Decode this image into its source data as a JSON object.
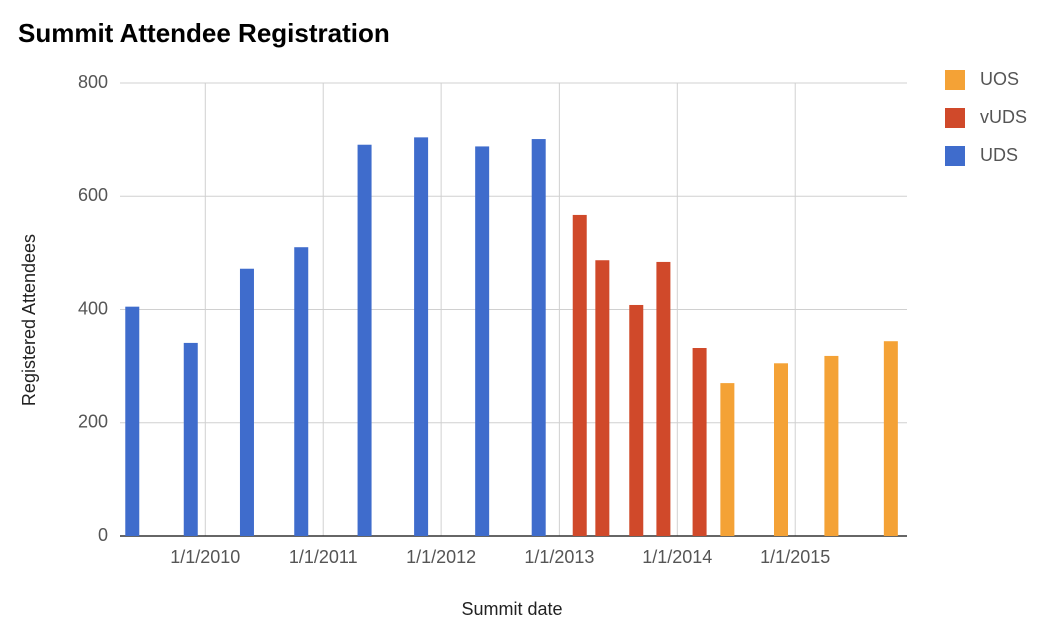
{
  "chart_data": {
    "type": "bar",
    "title": "Summit Attendee Registration",
    "x_label": "Summit date",
    "y_label": "Registered Attendees",
    "xlim": [
      "2009-04-12",
      "2015-12-13"
    ],
    "xticks": [
      {
        "value": "2010-01-01",
        "label": "1/1/2010"
      },
      {
        "value": "2011-01-01",
        "label": "1/1/2011"
      },
      {
        "value": "2012-01-01",
        "label": "1/1/2012"
      },
      {
        "value": "2013-01-01",
        "label": "1/1/2013"
      },
      {
        "value": "2014-01-01",
        "label": "1/1/2014"
      },
      {
        "value": "2015-01-01",
        "label": "1/1/2015"
      }
    ],
    "ylim": [
      0,
      800
    ],
    "yticks": [
      0,
      200,
      400,
      600,
      800
    ],
    "grid": true,
    "legend": "right",
    "series": [
      {
        "name": "UOS",
        "color": "#f4a236",
        "x": [
          "2014-06-05",
          "2014-11-18",
          "2015-04-23",
          "2015-10-24"
        ],
        "values": [
          270,
          305,
          318,
          344
        ]
      },
      {
        "name": "vUDS",
        "color": "#d0492a",
        "x": [
          "2013-03-05",
          "2013-05-14",
          "2013-08-27",
          "2013-11-19",
          "2014-03-11"
        ],
        "values": [
          567,
          487,
          408,
          484,
          332
        ]
      },
      {
        "name": "UDS",
        "color": "#3f6ccc",
        "x": [
          "2009-05-20",
          "2009-11-17",
          "2010-05-10",
          "2010-10-25",
          "2011-05-09",
          "2011-10-31",
          "2012-05-07",
          "2012-10-29"
        ],
        "values": [
          405,
          341,
          472,
          510,
          691,
          704,
          688,
          701
        ]
      }
    ]
  }
}
